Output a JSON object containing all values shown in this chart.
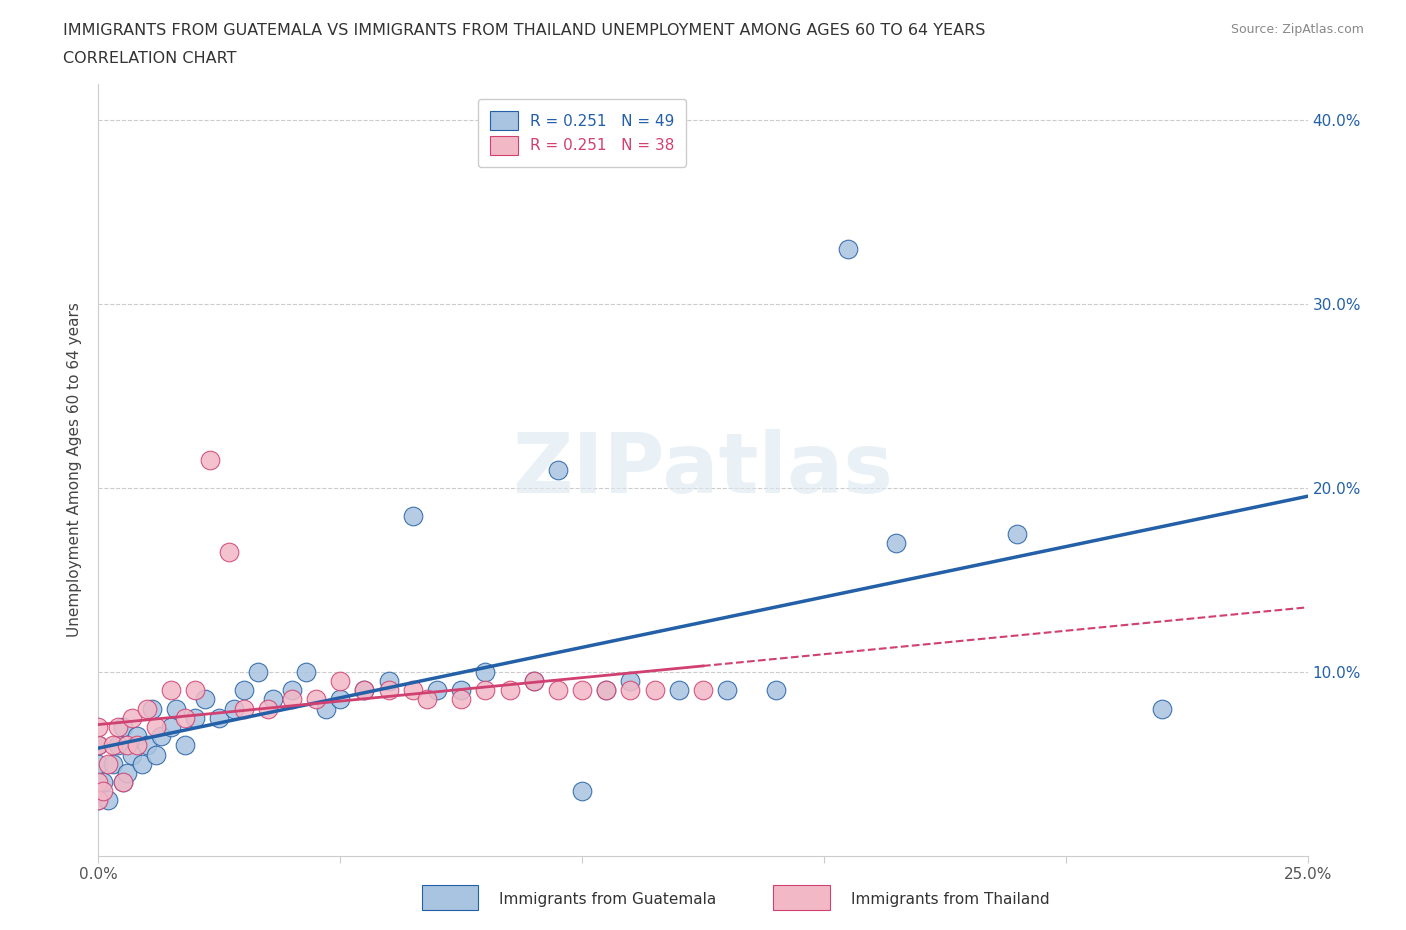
{
  "title_line1": "IMMIGRANTS FROM GUATEMALA VS IMMIGRANTS FROM THAILAND UNEMPLOYMENT AMONG AGES 60 TO 64 YEARS",
  "title_line2": "CORRELATION CHART",
  "source": "Source: ZipAtlas.com",
  "ylabel": "Unemployment Among Ages 60 to 64 years",
  "xlim": [
    0.0,
    0.25
  ],
  "ylim": [
    0.0,
    0.42
  ],
  "R_guatemala": 0.251,
  "N_guatemala": 49,
  "R_thailand": 0.251,
  "N_thailand": 38,
  "color_guatemala": "#a8c4e0",
  "color_thailand": "#f2b8c6",
  "line_color_guatemala": "#2460a7",
  "line_color_thailand": "#d04070",
  "watermark": "ZIPatlas",
  "guatemala_x": [
    0.0,
    0.0,
    0.0,
    0.001,
    0.002,
    0.003,
    0.004,
    0.005,
    0.005,
    0.006,
    0.007,
    0.008,
    0.009,
    0.01,
    0.011,
    0.012,
    0.013,
    0.015,
    0.016,
    0.018,
    0.02,
    0.022,
    0.025,
    0.028,
    0.03,
    0.033,
    0.036,
    0.04,
    0.043,
    0.047,
    0.05,
    0.055,
    0.06,
    0.065,
    0.07,
    0.075,
    0.08,
    0.09,
    0.095,
    0.1,
    0.105,
    0.11,
    0.12,
    0.13,
    0.14,
    0.155,
    0.165,
    0.19,
    0.22
  ],
  "guatemala_y": [
    0.03,
    0.05,
    0.06,
    0.04,
    0.03,
    0.05,
    0.06,
    0.04,
    0.07,
    0.045,
    0.055,
    0.065,
    0.05,
    0.06,
    0.08,
    0.055,
    0.065,
    0.07,
    0.08,
    0.06,
    0.075,
    0.085,
    0.075,
    0.08,
    0.09,
    0.1,
    0.085,
    0.09,
    0.1,
    0.08,
    0.085,
    0.09,
    0.095,
    0.185,
    0.09,
    0.09,
    0.1,
    0.095,
    0.21,
    0.035,
    0.09,
    0.095,
    0.09,
    0.09,
    0.09,
    0.33,
    0.17,
    0.175,
    0.08
  ],
  "thailand_x": [
    0.0,
    0.0,
    0.0,
    0.0,
    0.001,
    0.002,
    0.003,
    0.004,
    0.005,
    0.006,
    0.007,
    0.008,
    0.01,
    0.012,
    0.015,
    0.018,
    0.02,
    0.023,
    0.027,
    0.03,
    0.035,
    0.04,
    0.045,
    0.05,
    0.055,
    0.06,
    0.065,
    0.068,
    0.075,
    0.08,
    0.085,
    0.09,
    0.095,
    0.1,
    0.105,
    0.11,
    0.115,
    0.125
  ],
  "thailand_y": [
    0.03,
    0.04,
    0.06,
    0.07,
    0.035,
    0.05,
    0.06,
    0.07,
    0.04,
    0.06,
    0.075,
    0.06,
    0.08,
    0.07,
    0.09,
    0.075,
    0.09,
    0.215,
    0.165,
    0.08,
    0.08,
    0.085,
    0.085,
    0.095,
    0.09,
    0.09,
    0.09,
    0.085,
    0.085,
    0.09,
    0.09,
    0.095,
    0.09,
    0.09,
    0.09,
    0.09,
    0.09,
    0.09
  ]
}
